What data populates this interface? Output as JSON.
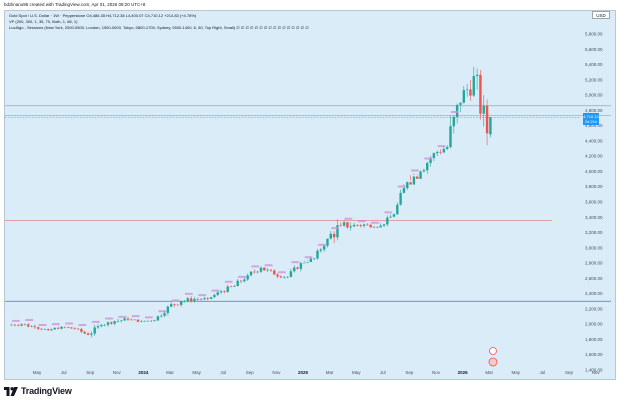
{
  "header": {
    "created_text": "bdzlinano96 created with TradingView.com, Apr 01, 2026 08:20 UTC+8"
  },
  "legend": {
    "symbol_line": "Gold Spot / U.S. Dollar · 1W · Pepperstone  O4,486.35  H4,712.38  L4,400.07  C4,710.12  +214.83 (+4.78%)",
    "vp_line": "VP (200, 300, 1, 35, 70, Both, 1, 68, 1)",
    "sessions_line": "LuxAlgo - Sessions (New York, 2000-0500, London, 1500-0000, Tokyo, 0800-1700, Sydney, 0500-1400, 6, 50, Top Right, Small)  ∅ ∅ ∅ ∅ ∅ ∅ ∅ ∅ ∅ ∅ ∅ ∅ ∅ ∅ ∅ ∅"
  },
  "currency": "USD",
  "price_badge": {
    "price": "4,710.12",
    "change": "2d 21h"
  },
  "y_axis_ticks": [
    "5,800.00",
    "5,600.00",
    "5,400.00",
    "5,200.00",
    "5,000.00",
    "4,800.00",
    "4,600.00",
    "4,400.00",
    "4,200.00",
    "4,000.00",
    "3,800.00",
    "3,600.00",
    "3,400.00",
    "3,200.00",
    "3,000.00",
    "2,800.00",
    "2,600.00",
    "2,400.00",
    "2,200.00",
    "2,000.00",
    "1,800.00",
    "1,600.00",
    "1,400.00"
  ],
  "x_axis_ticks": [
    {
      "label": "May",
      "bold": false
    },
    {
      "label": "Jul",
      "bold": false
    },
    {
      "label": "Sep",
      "bold": false
    },
    {
      "label": "Nov",
      "bold": false
    },
    {
      "label": "2024",
      "bold": true
    },
    {
      "label": "Mar",
      "bold": false
    },
    {
      "label": "May",
      "bold": false
    },
    {
      "label": "Jul",
      "bold": false
    },
    {
      "label": "Sep",
      "bold": false
    },
    {
      "label": "Nov",
      "bold": false
    },
    {
      "label": "2025",
      "bold": true
    },
    {
      "label": "Mar",
      "bold": false
    },
    {
      "label": "May",
      "bold": false
    },
    {
      "label": "Jul",
      "bold": false
    },
    {
      "label": "Sep",
      "bold": false
    },
    {
      "label": "Nov",
      "bold": false
    },
    {
      "label": "2026",
      "bold": true
    },
    {
      "label": "Mar",
      "bold": false
    },
    {
      "label": "May",
      "bold": false
    },
    {
      "label": "Jul",
      "bold": false
    },
    {
      "label": "Sep",
      "bold": false
    },
    {
      "label": "Nov",
      "bold": false
    }
  ],
  "horizontal_levels": [
    {
      "price": 4860,
      "color": "#9aa6b2"
    },
    {
      "price": 4730,
      "color": "#9aa6b2"
    },
    {
      "price": 3360,
      "color": "#e57373"
    },
    {
      "price": 2300,
      "color": "#5c6bc0"
    }
  ],
  "colors": {
    "up": "#26a69a",
    "down": "#ef5350",
    "panel": "#d9ecf7",
    "accent": "#2196f3"
  },
  "footer": {
    "brand": "TradingView"
  },
  "chart_data": {
    "type": "candlestick",
    "timeframe": "1W",
    "symbol": "XAUUSD",
    "ylim": [
      1350,
      5900
    ],
    "candles_monthly_approx": [
      {
        "month": "2023-04",
        "open": 1990,
        "high": 2080,
        "low": 1970,
        "close": 2000
      },
      {
        "month": "2023-05",
        "open": 2000,
        "high": 2060,
        "low": 1930,
        "close": 1960
      },
      {
        "month": "2023-06",
        "open": 1960,
        "high": 1980,
        "low": 1900,
        "close": 1920
      },
      {
        "month": "2023-07",
        "open": 1920,
        "high": 1990,
        "low": 1900,
        "close": 1965
      },
      {
        "month": "2023-08",
        "open": 1965,
        "high": 1970,
        "low": 1880,
        "close": 1940
      },
      {
        "month": "2023-09",
        "open": 1940,
        "high": 1950,
        "low": 1840,
        "close": 1860
      },
      {
        "month": "2023-10",
        "open": 1860,
        "high": 2010,
        "low": 1810,
        "close": 1990
      },
      {
        "month": "2023-11",
        "open": 1990,
        "high": 2060,
        "low": 1940,
        "close": 2040
      },
      {
        "month": "2023-12",
        "open": 2040,
        "high": 2140,
        "low": 1990,
        "close": 2060
      },
      {
        "month": "2024-01",
        "open": 2060,
        "high": 2080,
        "low": 2000,
        "close": 2040
      },
      {
        "month": "2024-02",
        "open": 2040,
        "high": 2060,
        "low": 1990,
        "close": 2050
      },
      {
        "month": "2024-03",
        "open": 2050,
        "high": 2260,
        "low": 2040,
        "close": 2230
      },
      {
        "month": "2024-04",
        "open": 2230,
        "high": 2430,
        "low": 2220,
        "close": 2300
      },
      {
        "month": "2024-05",
        "open": 2300,
        "high": 2450,
        "low": 2280,
        "close": 2330
      },
      {
        "month": "2024-06",
        "open": 2330,
        "high": 2390,
        "low": 2290,
        "close": 2330
      },
      {
        "month": "2024-07",
        "open": 2330,
        "high": 2480,
        "low": 2350,
        "close": 2430
      },
      {
        "month": "2024-08",
        "open": 2430,
        "high": 2530,
        "low": 2360,
        "close": 2500
      },
      {
        "month": "2024-09",
        "open": 2500,
        "high": 2680,
        "low": 2470,
        "close": 2640
      },
      {
        "month": "2024-10",
        "open": 2640,
        "high": 2790,
        "low": 2600,
        "close": 2740
      },
      {
        "month": "2024-11",
        "open": 2740,
        "high": 2750,
        "low": 2540,
        "close": 2650
      },
      {
        "month": "2024-12",
        "open": 2650,
        "high": 2720,
        "low": 2580,
        "close": 2620
      },
      {
        "month": "2025-01",
        "open": 2620,
        "high": 2820,
        "low": 2610,
        "close": 2800
      },
      {
        "month": "2025-02",
        "open": 2800,
        "high": 2960,
        "low": 2830,
        "close": 2860
      },
      {
        "month": "2025-03",
        "open": 2860,
        "high": 3060,
        "low": 2840,
        "close": 3120
      },
      {
        "month": "2025-04",
        "open": 3120,
        "high": 3500,
        "low": 2970,
        "close": 3290
      },
      {
        "month": "2025-05",
        "open": 3290,
        "high": 3430,
        "low": 3120,
        "close": 3300
      },
      {
        "month": "2025-06",
        "open": 3300,
        "high": 3450,
        "low": 3250,
        "close": 3300
      },
      {
        "month": "2025-07",
        "open": 3300,
        "high": 3440,
        "low": 3270,
        "close": 3290
      },
      {
        "month": "2025-08",
        "open": 3290,
        "high": 3450,
        "low": 3270,
        "close": 3440
      },
      {
        "month": "2025-09",
        "open": 3440,
        "high": 3870,
        "low": 3430,
        "close": 3860
      },
      {
        "month": "2025-10",
        "open": 3860,
        "high": 4380,
        "low": 3950,
        "close": 4000
      },
      {
        "month": "2025-11",
        "open": 4000,
        "high": 4250,
        "low": 3930,
        "close": 4240
      },
      {
        "month": "2025-12",
        "open": 4240,
        "high": 4550,
        "low": 4200,
        "close": 4320
      },
      {
        "month": "2026-01",
        "open": 4320,
        "high": 5600,
        "low": 4300,
        "close": 4900
      },
      {
        "month": "2026-02",
        "open": 4900,
        "high": 5400,
        "low": 4400,
        "close": 5250
      },
      {
        "month": "2026-03",
        "open": 5250,
        "high": 5350,
        "low": 4100,
        "close": 4500
      },
      {
        "month": "2026-04",
        "open": 4486.35,
        "high": 4712.38,
        "low": 4400.07,
        "close": 4710.12
      }
    ]
  }
}
